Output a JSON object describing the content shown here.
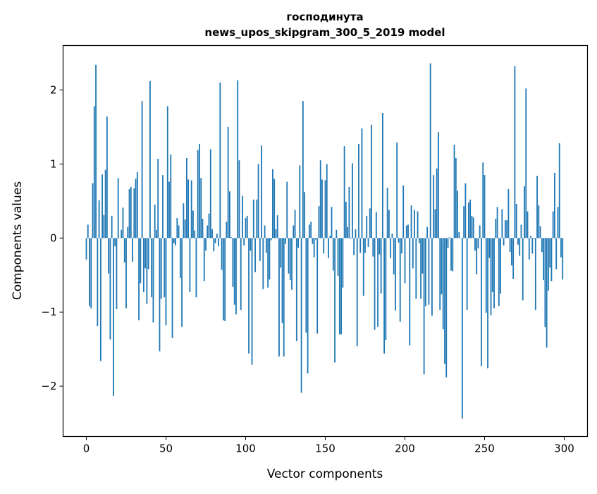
{
  "chart_data": {
    "type": "bar",
    "title": "господинута",
    "subtitle": "news_upos_skipgram_300_5_2019 model",
    "xlabel": "Vector components",
    "ylabel": "Components values",
    "xlim": [
      -14.6,
      314.6
    ],
    "ylim": [
      -2.68,
      2.6
    ],
    "xticks": [
      0,
      50,
      100,
      150,
      200,
      250,
      300
    ],
    "xtick_labels": [
      "0",
      "50",
      "100",
      "150",
      "200",
      "250",
      "300"
    ],
    "yticks": [
      -2,
      -1,
      0,
      1,
      2
    ],
    "ytick_labels": [
      "−2",
      "−1",
      "0",
      "1",
      "2"
    ],
    "grid": false,
    "bar_color": "#1f77b4",
    "values": [
      -0.29,
      0.18,
      -0.92,
      -0.95,
      0.74,
      1.78,
      2.34,
      -1.19,
      0.51,
      -1.66,
      0.86,
      0.31,
      0.92,
      1.64,
      -0.48,
      -1.37,
      0.3,
      -2.13,
      -0.11,
      -0.96,
      0.81,
      0.0,
      0.11,
      0.41,
      -0.33,
      -0.95,
      0.15,
      0.66,
      0.69,
      -0.32,
      0.67,
      0.8,
      0.89,
      -1.11,
      -0.61,
      1.85,
      -0.73,
      -0.41,
      -0.89,
      -0.42,
      2.12,
      -0.8,
      -1.14,
      0.45,
      0.11,
      1.07,
      -1.53,
      -0.82,
      0.85,
      -0.8,
      -1.18,
      1.78,
      0.76,
      1.13,
      -1.35,
      -0.07,
      -0.1,
      0.27,
      0.17,
      -0.54,
      -1.2,
      0.47,
      0.25,
      1.08,
      0.79,
      -0.73,
      0.78,
      0.37,
      0.1,
      -0.8,
      1.19,
      1.27,
      0.81,
      0.26,
      -0.58,
      -0.17,
      0.17,
      0.33,
      1.2,
      0.12,
      -0.18,
      -0.07,
      0.06,
      -0.11,
      2.1,
      -0.43,
      -1.11,
      -1.12,
      0.22,
      1.5,
      0.63,
      0.01,
      -0.66,
      -0.9,
      -1.03,
      2.13,
      1.05,
      -0.97,
      0.57,
      -0.1,
      0.27,
      0.3,
      -1.56,
      -0.17,
      -1.71,
      0.52,
      -0.46,
      0.52,
      1.0,
      -0.31,
      1.25,
      -0.69,
      0.17,
      -0.2,
      -0.67,
      -0.56,
      -0.03,
      0.93,
      0.8,
      0.12,
      0.31,
      -1.6,
      -0.4,
      -1.15,
      -1.6,
      -0.08,
      0.76,
      -0.48,
      -0.57,
      -0.7,
      0.17,
      0.38,
      -1.39,
      -0.13,
      0.98,
      -2.09,
      1.85,
      0.62,
      -1.28,
      -1.83,
      0.18,
      0.22,
      -0.08,
      -0.26,
      -0.02,
      -1.29,
      0.43,
      1.05,
      0.79,
      -0.21,
      0.78,
      1.0,
      -0.27,
      0.03,
      0.42,
      -0.44,
      -1.68,
      0.11,
      -0.51,
      -1.3,
      -1.3,
      -0.67,
      1.24,
      0.49,
      0.15,
      0.69,
      -0.01,
      1.01,
      -0.23,
      0.12,
      -1.46,
      1.27,
      -0.2,
      1.48,
      -0.78,
      -0.2,
      0.3,
      -0.12,
      0.4,
      1.53,
      -0.25,
      -1.24,
      0.35,
      -1.2,
      -0.22,
      -0.75,
      1.69,
      -1.56,
      -1.38,
      0.68,
      0.38,
      -0.27,
      0.06,
      -0.49,
      -0.98,
      1.29,
      -0.06,
      -1.13,
      -0.21,
      0.71,
      -0.61,
      0.17,
      0.18,
      -1.45,
      0.44,
      -0.41,
      0.38,
      -0.82,
      0.36,
      -0.07,
      -0.82,
      -0.48,
      -1.84,
      -0.92,
      0.15,
      -0.9,
      2.36,
      -1.05,
      0.85,
      0.39,
      0.94,
      1.43,
      -0.97,
      -0.76,
      -1.23,
      -1.7,
      -1.88,
      -0.13,
      0.01,
      -0.44,
      -0.45,
      1.26,
      1.08,
      0.64,
      0.08,
      0.0,
      -2.44,
      0.43,
      0.74,
      -0.97,
      0.48,
      0.52,
      0.3,
      0.28,
      -0.17,
      -0.49,
      -0.14,
      0.17,
      -1.73,
      1.02,
      0.85,
      -1.01,
      -1.76,
      -0.27,
      -1.04,
      -0.73,
      -0.95,
      0.26,
      0.42,
      -0.92,
      -0.75,
      0.39,
      -0.1,
      0.24,
      0.24,
      0.66,
      -0.19,
      -0.37,
      -0.55,
      2.32,
      0.46,
      -0.09,
      -0.24,
      0.18,
      -0.84,
      0.7,
      2.02,
      0.36,
      -0.29,
      0.03,
      -0.21,
      -0.01,
      -0.97,
      0.84,
      0.44,
      0.16,
      -0.19,
      -0.57,
      -1.2,
      -1.48,
      -0.71,
      -0.4,
      -0.58,
      0.36,
      0.88,
      -0.42,
      0.42,
      1.28,
      -0.26,
      -0.56
    ]
  }
}
